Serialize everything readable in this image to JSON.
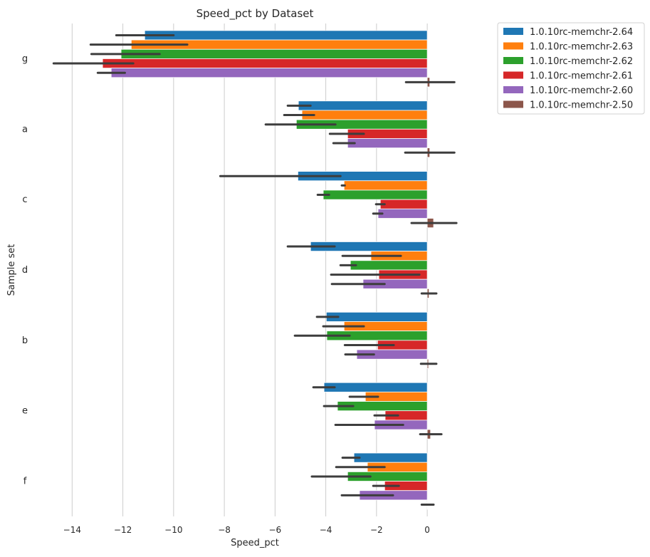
{
  "chart_data": {
    "type": "bar",
    "orientation": "horizontal",
    "title": "Speed_pct by Dataset",
    "xlabel": "Speed_pct",
    "ylabel": "Sample set",
    "xlim": [
      -15.3,
      1.4
    ],
    "xticks": [
      -14,
      -12,
      -10,
      -8,
      -6,
      -4,
      -2,
      0
    ],
    "xtick_labels": [
      "−14",
      "−12",
      "−10",
      "−8",
      "−6",
      "−4",
      "−2",
      "0"
    ],
    "grid": "vertical",
    "legend_placement": "outside-top-right",
    "categories": [
      "g",
      "a",
      "c",
      "d",
      "b",
      "e",
      "f"
    ],
    "series": [
      {
        "name": "1.0.10rc-memchr-2.64",
        "color": "#1f77b4",
        "values": [
          -11.14,
          -5.08,
          -5.1,
          -4.6,
          -3.98,
          -4.07,
          -2.89
        ],
        "ci": [
          [
            -12.26,
            -10.0
          ],
          [
            -5.5,
            -4.6
          ],
          [
            -8.16,
            -3.42
          ],
          [
            -5.5,
            -3.65
          ],
          [
            -4.35,
            -3.51
          ],
          [
            -4.49,
            -3.65
          ],
          [
            -3.34,
            -2.67
          ]
        ]
      },
      {
        "name": "1.0.10rc-memchr-2.63",
        "color": "#ff7f0e",
        "values": [
          -11.67,
          -4.94,
          -3.28,
          -2.22,
          -3.28,
          -2.44,
          -2.36
        ],
        "ci": [
          [
            -13.27,
            -9.46
          ],
          [
            -5.64,
            -4.46
          ],
          [
            -3.37,
            -3.25
          ],
          [
            -3.34,
            -1.04
          ],
          [
            -4.1,
            -2.5
          ],
          [
            -3.06,
            -1.94
          ],
          [
            -3.59,
            -1.68
          ]
        ]
      },
      {
        "name": "1.0.10rc-memchr-2.62",
        "color": "#2ca02c",
        "values": [
          -12.07,
          -5.16,
          -4.1,
          -3.03,
          -3.96,
          -3.54,
          -3.14
        ],
        "ci": [
          [
            -13.24,
            -10.55
          ],
          [
            -6.37,
            -3.62
          ],
          [
            -4.32,
            -3.87
          ],
          [
            -3.42,
            -2.81
          ],
          [
            -5.22,
            -3.06
          ],
          [
            -4.07,
            -2.92
          ],
          [
            -4.55,
            -2.24
          ]
        ]
      },
      {
        "name": "1.0.10rc-memchr-2.61",
        "color": "#d62728",
        "values": [
          -12.8,
          -3.14,
          -1.85,
          -1.91,
          -1.96,
          -1.66,
          -1.68
        ],
        "ci": [
          [
            -14.73,
            -11.59
          ],
          [
            -3.84,
            -2.5
          ],
          [
            -2.02,
            -1.68
          ],
          [
            -3.79,
            -0.31
          ],
          [
            -3.25,
            -1.32
          ],
          [
            -2.08,
            -1.15
          ],
          [
            -2.13,
            -1.12
          ]
        ]
      },
      {
        "name": "1.0.10rc-memchr-2.60",
        "color": "#9467bd",
        "values": [
          -12.46,
          -3.14,
          -1.94,
          -2.53,
          -2.78,
          -2.08,
          -2.67
        ],
        "ci": [
          [
            -12.99,
            -11.92
          ],
          [
            -3.7,
            -2.86
          ],
          [
            -2.13,
            -1.77
          ],
          [
            -3.76,
            -1.68
          ],
          [
            -3.23,
            -2.1
          ],
          [
            -3.62,
            -0.95
          ],
          [
            -3.37,
            -1.35
          ]
        ]
      },
      {
        "name": "1.0.10rc-memchr-2.50",
        "color": "#8c564b",
        "values": [
          0.1,
          0.1,
          0.25,
          0.07,
          0.05,
          0.13,
          0.02
        ],
        "ci": [
          [
            -0.84,
            1.07
          ],
          [
            -0.87,
            1.07
          ],
          [
            -0.62,
            1.15
          ],
          [
            -0.22,
            0.36
          ],
          [
            -0.25,
            0.36
          ],
          [
            -0.28,
            0.56
          ],
          [
            -0.22,
            0.25
          ]
        ]
      }
    ]
  }
}
